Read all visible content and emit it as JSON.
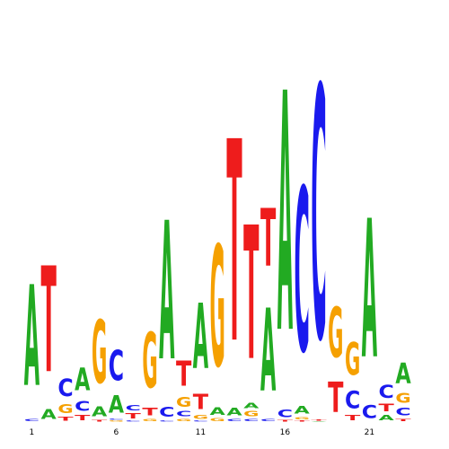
{
  "chart_data": {
    "type": "sequence-logo",
    "title": "",
    "xlabel": "",
    "ylabel": "",
    "x_tick_labels": [
      {
        "position": 1,
        "label": "1"
      },
      {
        "position": 6,
        "label": "6"
      },
      {
        "position": 11,
        "label": "11"
      },
      {
        "position": 16,
        "label": "16"
      },
      {
        "position": 21,
        "label": "21"
      }
    ],
    "y_scale_note": "letter heights relative to full stack height of 1.0",
    "colors": {
      "A": "#22aa22",
      "C": "#1a1aee",
      "G": "#f5a000",
      "T": "#ee1c1c"
    },
    "positions": [
      {
        "position": 1,
        "stack": [
          {
            "letter": "C",
            "height": 0.01
          },
          {
            "letter": "A",
            "height": 0.4
          }
        ]
      },
      {
        "position": 2,
        "stack": [
          {
            "letter": "A",
            "height": 0.04
          },
          {
            "letter": "T",
            "height": 0.42
          }
        ]
      },
      {
        "position": 3,
        "stack": [
          {
            "letter": "T",
            "height": 0.015
          },
          {
            "letter": "G",
            "height": 0.035
          },
          {
            "letter": "C",
            "height": 0.07
          }
        ]
      },
      {
        "position": 4,
        "stack": [
          {
            "letter": "T",
            "height": 0.02
          },
          {
            "letter": "C",
            "height": 0.04
          },
          {
            "letter": "A",
            "height": 0.09
          }
        ]
      },
      {
        "position": 5,
        "stack": [
          {
            "letter": "T",
            "height": 0.006
          },
          {
            "letter": "A",
            "height": 0.04
          },
          {
            "letter": "G",
            "height": 0.25
          }
        ]
      },
      {
        "position": 6,
        "stack": [
          {
            "letter": "G",
            "height": 0.004
          },
          {
            "letter": "C",
            "height": 0.005
          },
          {
            "letter": "A",
            "height": 0.07
          },
          {
            "letter": "C",
            "height": 0.12
          }
        ]
      },
      {
        "position": 7,
        "stack": [
          {
            "letter": "C",
            "height": 0.005
          },
          {
            "letter": "T",
            "height": 0.02
          },
          {
            "letter": "C",
            "height": 0.02
          }
        ]
      },
      {
        "position": 8,
        "stack": [
          {
            "letter": "G",
            "height": 0.01
          },
          {
            "letter": "T",
            "height": 0.03
          },
          {
            "letter": "G",
            "height": 0.22
          }
        ]
      },
      {
        "position": 9,
        "stack": [
          {
            "letter": "C",
            "height": 0.005
          },
          {
            "letter": "C",
            "height": 0.04
          },
          {
            "letter": "A",
            "height": 0.55
          }
        ]
      },
      {
        "position": 10,
        "stack": [
          {
            "letter": "G",
            "height": 0.01
          },
          {
            "letter": "C",
            "height": 0.02
          },
          {
            "letter": "G",
            "height": 0.04
          },
          {
            "letter": "T",
            "height": 0.1
          }
        ]
      },
      {
        "position": 11,
        "stack": [
          {
            "letter": "C",
            "height": 0.005
          },
          {
            "letter": "G",
            "height": 0.015
          },
          {
            "letter": "T",
            "height": 0.06
          },
          {
            "letter": "A",
            "height": 0.26
          }
        ]
      },
      {
        "position": 12,
        "stack": [
          {
            "letter": "G",
            "height": 0.012
          },
          {
            "letter": "A",
            "height": 0.03
          },
          {
            "letter": "G",
            "height": 0.48
          }
        ]
      },
      {
        "position": 13,
        "stack": [
          {
            "letter": "C",
            "height": 0.01
          },
          {
            "letter": "A",
            "height": 0.03
          },
          {
            "letter": "T",
            "height": 0.8
          }
        ]
      },
      {
        "position": 14,
        "stack": [
          {
            "letter": "C",
            "height": 0.01
          },
          {
            "letter": "G",
            "height": 0.02
          },
          {
            "letter": "A",
            "height": 0.02
          },
          {
            "letter": "T",
            "height": 0.53
          }
        ]
      },
      {
        "position": 15,
        "stack": [
          {
            "letter": "C",
            "height": 0.01
          },
          {
            "letter": "A",
            "height": 0.33
          },
          {
            "letter": "T",
            "height": 0.23
          }
        ]
      },
      {
        "position": 16,
        "stack": [
          {
            "letter": "T",
            "height": 0.006
          },
          {
            "letter": "C",
            "height": 0.03
          },
          {
            "letter": "A",
            "height": 0.95
          }
        ]
      },
      {
        "position": 17,
        "stack": [
          {
            "letter": "T",
            "height": 0.005
          },
          {
            "letter": "G",
            "height": 0.01
          },
          {
            "letter": "A",
            "height": 0.03
          },
          {
            "letter": "C",
            "height": 0.65
          }
        ]
      },
      {
        "position": 18,
        "stack": [
          {
            "letter": "A",
            "height": 0.003
          },
          {
            "letter": "T",
            "height": 0.004
          },
          {
            "letter": "C",
            "height": 1.0
          }
        ]
      },
      {
        "position": 19,
        "stack": [
          {
            "letter": "T",
            "height": 0.12
          },
          {
            "letter": "G",
            "height": 0.2
          }
        ]
      },
      {
        "position": 20,
        "stack": [
          {
            "letter": "T",
            "height": 0.02
          },
          {
            "letter": "C",
            "height": 0.07
          },
          {
            "letter": "G",
            "height": 0.13
          }
        ]
      },
      {
        "position": 21,
        "stack": [
          {
            "letter": "C",
            "height": 0.05
          },
          {
            "letter": "A",
            "height": 0.55
          }
        ]
      },
      {
        "position": 22,
        "stack": [
          {
            "letter": "A",
            "height": 0.02
          },
          {
            "letter": "T",
            "height": 0.03
          },
          {
            "letter": "C",
            "height": 0.05
          }
        ]
      },
      {
        "position": 23,
        "stack": [
          {
            "letter": "T",
            "height": 0.01
          },
          {
            "letter": "C",
            "height": 0.03
          },
          {
            "letter": "G",
            "height": 0.04
          },
          {
            "letter": "A",
            "height": 0.08
          }
        ]
      }
    ]
  }
}
